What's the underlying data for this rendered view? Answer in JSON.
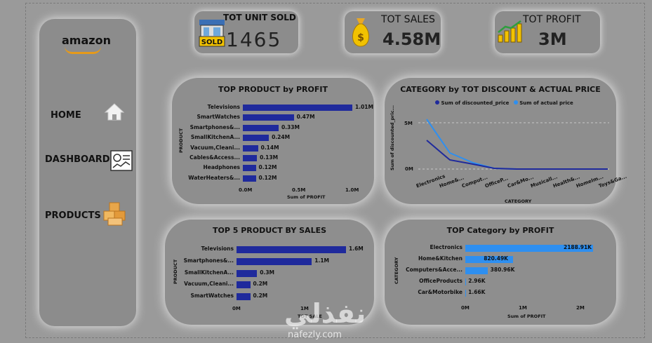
{
  "nav": {
    "logo": "amazon",
    "home": "HOME",
    "dashboard": "DASHBOARD",
    "products": "PRODUCTS"
  },
  "kpis": [
    {
      "title": "TOT UNIT SOLD",
      "value": "1465",
      "icon": "sold-shop-icon"
    },
    {
      "title": "TOT SALES",
      "value": "4.58M",
      "icon": "money-bag-icon"
    },
    {
      "title": "TOT PROFIT",
      "value": "3M",
      "icon": "profit-coins-icon"
    }
  ],
  "top_product": {
    "title": "TOP PRODUCT by PROFIT",
    "ylabel": "PRODUCT",
    "xlabel": "Sum of PROFIT",
    "ticks": [
      "0.0M",
      "0.5M",
      "1.0M"
    ],
    "items": [
      {
        "label": "Televisions",
        "value": 1.01,
        "text": "1.01M"
      },
      {
        "label": "SmartWatches",
        "value": 0.47,
        "text": "0.47M"
      },
      {
        "label": "Smartphones&...",
        "value": 0.33,
        "text": "0.33M"
      },
      {
        "label": "SmallKitchenA...",
        "value": 0.24,
        "text": "0.24M"
      },
      {
        "label": "Vacuum,Cleani...",
        "value": 0.14,
        "text": "0.14M"
      },
      {
        "label": "Cables&Access...",
        "value": 0.13,
        "text": "0.13M"
      },
      {
        "label": "Headphones",
        "value": 0.12,
        "text": "0.12M"
      },
      {
        "label": "WaterHeaters&...",
        "value": 0.12,
        "text": "0.12M"
      }
    ]
  },
  "category_line": {
    "title": "CATEGORY by TOT DISCOUNT & ACTUAL PRICE",
    "legend": [
      "Sum of discounted_price",
      "Sum of actual price"
    ],
    "ylabel": "Sum of discounted_pric...",
    "xlabel": "CATEGORY",
    "yticks": [
      "5M",
      "0M"
    ],
    "categories": [
      "Electronics",
      "Home&...",
      "Comput...",
      "OfficeP...",
      "Car&Mo...",
      "Musicall...",
      "Health&...",
      "HomeIm...",
      "Toys&Ga..."
    ]
  },
  "top5": {
    "title": "TOP 5 PRODUCT BY SALES",
    "ylabel": "PRODUCT",
    "xlabel": "TOT SALE",
    "ticks": [
      "0M",
      "1M"
    ],
    "items": [
      {
        "label": "Televisions",
        "value": 1.6,
        "text": "1.6M"
      },
      {
        "label": "Smartphones&...",
        "value": 1.1,
        "text": "1.1M"
      },
      {
        "label": "SmallKitchenA...",
        "value": 0.3,
        "text": "0.3M"
      },
      {
        "label": "Vacuum,Cleani...",
        "value": 0.2,
        "text": "0.2M"
      },
      {
        "label": "SmartWatches",
        "value": 0.2,
        "text": "0.2M"
      }
    ]
  },
  "top_category": {
    "title": "TOP Category by PROFIT",
    "ylabel": "CATEGORY",
    "xlabel": "Sum of PROFIT",
    "ticks": [
      "0M",
      "1M",
      "2M"
    ],
    "items": [
      {
        "label": "Electronics",
        "value": 2188.91,
        "text": "2188.91K"
      },
      {
        "label": "Home&Kitchen",
        "value": 820.49,
        "text": "820.49K"
      },
      {
        "label": "Computers&Acce...",
        "value": 380.96,
        "text": "380.96K"
      },
      {
        "label": "OfficeProducts",
        "value": 2.96,
        "text": "2.96K"
      },
      {
        "label": "Car&Motorbike",
        "value": 1.66,
        "text": "1.66K"
      }
    ]
  },
  "watermark": {
    "main": "نفذلي",
    "sub": "nafezly.com"
  }
}
